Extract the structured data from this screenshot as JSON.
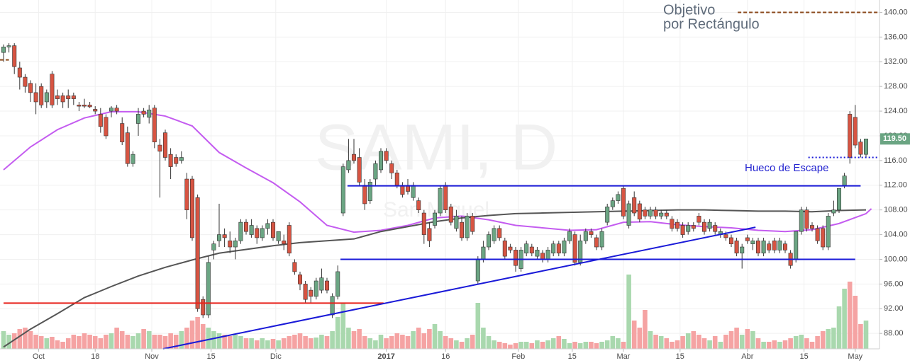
{
  "chart_data": {
    "type": "candlestick",
    "title": "SAMI, D",
    "subtitle": "San Miguel",
    "annotations": [
      "Objetivo",
      "por Rectángulo",
      "Hueco de Escape"
    ],
    "last_price": {
      "value": 119.5,
      "label": "119.50"
    },
    "xlim": [
      -0.66,
      162.5
    ],
    "ylim": [
      85.5,
      142
    ],
    "yticks": [
      {
        "value": 88,
        "label": "88.00"
      },
      {
        "value": 92,
        "label": "92.00"
      },
      {
        "value": 96,
        "label": "96.00"
      },
      {
        "value": 100,
        "label": "100.00"
      },
      {
        "value": 104,
        "label": "104.00"
      },
      {
        "value": 108,
        "label": "108.00"
      },
      {
        "value": 112,
        "label": "112.00"
      },
      {
        "value": 116,
        "label": "116.00"
      },
      {
        "value": 120,
        "label": "120.00"
      },
      {
        "value": 124,
        "label": "124.00"
      },
      {
        "value": 128,
        "label": "128.00"
      },
      {
        "value": 132,
        "label": "132.00"
      },
      {
        "value": 136,
        "label": "136.00"
      },
      {
        "value": 140,
        "label": "140.00"
      }
    ],
    "xticks": [
      {
        "value": 6.5,
        "label": "Oct"
      },
      {
        "value": 17,
        "label": "18"
      },
      {
        "value": 27.5,
        "label": "Nov"
      },
      {
        "value": 38.5,
        "label": "15"
      },
      {
        "value": 50.5,
        "label": "Dic"
      },
      {
        "value": 71,
        "label": "2017"
      },
      {
        "value": 82,
        "label": "16"
      },
      {
        "value": 95.5,
        "label": "Feb"
      },
      {
        "value": 105.5,
        "label": "15"
      },
      {
        "value": 115,
        "label": "Mar"
      },
      {
        "value": 125.5,
        "label": "15"
      },
      {
        "value": 138,
        "label": "Abr"
      },
      {
        "value": 148.5,
        "label": "15"
      },
      {
        "value": 158,
        "label": "May"
      }
    ],
    "grid": true,
    "up_color": "#6ba583",
    "down_color": "#d75442",
    "volume_up_color": "#a9d8ae",
    "volume_down_color": "#f5a3a3",
    "candles": [
      [
        133.5,
        134.8,
        132,
        134.4
      ],
      [
        134.4,
        135,
        133.5,
        134.6
      ],
      [
        134.6,
        135,
        130,
        131.2
      ],
      [
        131,
        132,
        127.5,
        129.5
      ],
      [
        129.5,
        130,
        127,
        128
      ],
      [
        128.5,
        129,
        125.5,
        127
      ],
      [
        127,
        128.5,
        123.5,
        125.5
      ],
      [
        128,
        128.5,
        124.5,
        125
      ],
      [
        125.5,
        127.5,
        124.5,
        127
      ],
      [
        130,
        130.5,
        124.5,
        125
      ],
      [
        126.5,
        127.5,
        125,
        126
      ],
      [
        126.5,
        127,
        124.5,
        125.5
      ],
      [
        126.5,
        127.5,
        124.5,
        126
      ],
      [
        126.5,
        127,
        125,
        126
      ],
      [
        125,
        125.5,
        124,
        124.8
      ],
      [
        125,
        126,
        124.5,
        124.8
      ],
      [
        125,
        125.5,
        124.5,
        124.7
      ],
      [
        124.3,
        124.8,
        123.5,
        124
      ],
      [
        123.5,
        124.5,
        120.5,
        121.5
      ],
      [
        123,
        123.5,
        119.5,
        120
      ],
      [
        124,
        124.8,
        123,
        124.5
      ],
      [
        124.5,
        125,
        123.5,
        124
      ],
      [
        122,
        123,
        118.5,
        119
      ],
      [
        120.5,
        121.5,
        115,
        115.5
      ],
      [
        115.5,
        117.5,
        115,
        117
      ],
      [
        122,
        124.5,
        120,
        123.5
      ],
      [
        124,
        124.5,
        123,
        123.5
      ],
      [
        123,
        125,
        122,
        124.2
      ],
      [
        124.5,
        125,
        118,
        119
      ],
      [
        118.5,
        119.5,
        110,
        117.5
      ],
      [
        120.5,
        121,
        116,
        116.5
      ],
      [
        117,
        118,
        113,
        115
      ],
      [
        116.5,
        117,
        115,
        115.5
      ],
      [
        116,
        117.5,
        115.5,
        116.5
      ],
      [
        113,
        114,
        106.5,
        108
      ],
      [
        113,
        113.5,
        103,
        103.5
      ],
      [
        110,
        110.5,
        91.5,
        92
      ],
      [
        93.5,
        94,
        90.5,
        91
      ],
      [
        91,
        100.5,
        90.5,
        99.5
      ],
      [
        101.5,
        103,
        100,
        102.5
      ],
      [
        103,
        109,
        102,
        104
      ],
      [
        104,
        105,
        102,
        103.5
      ],
      [
        103,
        104.5,
        101,
        102
      ],
      [
        102,
        103.5,
        100,
        103
      ],
      [
        103,
        106.5,
        102.5,
        106
      ],
      [
        106,
        106.5,
        104,
        104.5
      ],
      [
        104,
        106.5,
        103.5,
        105.5
      ],
      [
        105,
        105.5,
        102.5,
        103.5
      ],
      [
        103.5,
        105.5,
        103,
        105
      ],
      [
        105,
        106.5,
        104,
        105.8
      ],
      [
        106,
        106.5,
        103,
        103.5
      ],
      [
        103,
        104.5,
        102.5,
        104.5
      ],
      [
        103,
        104,
        101.5,
        102.5
      ],
      [
        105.5,
        106,
        100.5,
        101
      ],
      [
        99.5,
        100,
        97.5,
        98
      ],
      [
        97.5,
        98,
        95,
        96
      ],
      [
        96,
        96.5,
        93,
        93.5
      ],
      [
        95,
        95.5,
        93,
        94
      ],
      [
        94,
        97,
        93.5,
        96.5
      ],
      [
        95,
        98.5,
        94.5,
        97
      ],
      [
        96.5,
        97,
        94.5,
        95
      ],
      [
        91,
        94.5,
        90.5,
        94
      ],
      [
        94,
        99,
        93.5,
        98
      ],
      [
        107.5,
        115.5,
        107,
        115
      ],
      [
        114.5,
        119.5,
        114,
        116
      ],
      [
        117,
        119.5,
        115.5,
        116
      ],
      [
        116.5,
        118,
        112,
        112.5
      ],
      [
        112,
        113,
        108,
        109
      ],
      [
        109.5,
        113,
        109,
        112.5
      ],
      [
        113,
        116,
        112,
        115.5
      ],
      [
        114.5,
        118,
        114,
        117.5
      ],
      [
        117.5,
        118,
        115.5,
        116
      ],
      [
        115.5,
        116,
        113,
        114
      ],
      [
        114,
        114.5,
        111.5,
        112
      ],
      [
        112,
        112.5,
        110,
        110.5
      ],
      [
        112,
        113,
        110.5,
        111
      ],
      [
        110,
        112.5,
        109.5,
        112
      ],
      [
        109.5,
        110,
        107.5,
        108
      ],
      [
        107.5,
        108,
        102.5,
        104
      ],
      [
        105,
        106,
        102,
        103
      ],
      [
        105.5,
        108,
        105,
        107.5
      ],
      [
        107.5,
        112,
        107,
        111.5
      ],
      [
        112,
        112.5,
        107.5,
        108
      ],
      [
        108.5,
        109,
        105.5,
        106
      ],
      [
        105,
        108,
        104.5,
        107
      ],
      [
        106,
        107,
        103,
        103.5
      ],
      [
        103.5,
        107.5,
        103,
        107
      ],
      [
        107,
        107.5,
        104,
        104.5
      ],
      [
        96.5,
        100.5,
        96,
        100
      ],
      [
        100,
        103,
        99.5,
        102
      ],
      [
        102,
        104.5,
        101.5,
        104
      ],
      [
        103,
        105.5,
        102.5,
        105
      ],
      [
        105,
        105.5,
        103,
        103.5
      ],
      [
        103,
        103.5,
        100,
        100.5
      ],
      [
        102,
        102.5,
        101,
        101.5
      ],
      [
        101.5,
        102,
        98,
        99
      ],
      [
        98.5,
        102,
        98,
        101.5
      ],
      [
        101,
        103,
        100.5,
        102.5
      ],
      [
        102,
        102.5,
        100.5,
        101
      ],
      [
        100.5,
        102,
        100,
        101.5
      ],
      [
        101,
        101.5,
        99.5,
        100
      ],
      [
        100,
        102,
        99.5,
        101.5
      ],
      [
        101,
        103,
        100.5,
        102.5
      ],
      [
        102.5,
        103,
        100.5,
        101
      ],
      [
        101,
        103.5,
        100.5,
        103
      ],
      [
        103,
        105,
        102.5,
        104.5
      ],
      [
        104,
        104.5,
        99,
        99.5
      ],
      [
        99.5,
        104,
        99,
        103
      ],
      [
        103,
        105,
        102.5,
        104.5
      ],
      [
        104.5,
        105,
        103.5,
        104
      ],
      [
        103.5,
        104,
        101.5,
        102
      ],
      [
        102,
        105,
        101.5,
        104.5
      ],
      [
        106,
        109,
        105.5,
        108.5
      ],
      [
        108.5,
        110,
        108,
        109.5
      ],
      [
        109.5,
        111,
        109,
        110.5
      ],
      [
        111.5,
        112,
        106.5,
        107
      ],
      [
        105.5,
        109.5,
        105,
        109
      ],
      [
        110,
        111,
        107,
        107.5
      ],
      [
        109,
        109.5,
        106,
        106.5
      ],
      [
        108,
        108.5,
        106.5,
        107
      ],
      [
        107,
        108.5,
        106.5,
        108
      ],
      [
        108,
        108.5,
        106.5,
        107
      ],
      [
        107,
        108,
        106.5,
        107.5
      ],
      [
        107.5,
        108,
        106.5,
        107
      ],
      [
        106.5,
        107,
        104.5,
        105
      ],
      [
        106,
        106.5,
        104.5,
        105
      ],
      [
        105.5,
        106,
        103.5,
        104
      ],
      [
        104.5,
        106,
        104,
        105.5
      ],
      [
        105.5,
        106,
        104.5,
        105
      ],
      [
        107,
        107.5,
        105.5,
        106
      ],
      [
        106,
        106.5,
        104,
        104.5
      ],
      [
        105,
        106.5,
        104.5,
        106
      ],
      [
        105.5,
        106,
        104,
        104.5
      ],
      [
        104,
        105,
        103.5,
        104.5
      ],
      [
        104,
        104.5,
        103,
        103.5
      ],
      [
        103.5,
        104,
        102,
        102.5
      ],
      [
        103,
        103.5,
        100.5,
        101
      ],
      [
        101,
        102.5,
        98.5,
        102
      ],
      [
        103.5,
        104,
        102.5,
        103
      ],
      [
        102.5,
        103.5,
        101.5,
        103
      ],
      [
        103,
        103.5,
        100.5,
        101
      ],
      [
        101,
        103.5,
        100.5,
        103
      ],
      [
        102.5,
        103,
        101,
        101.5
      ],
      [
        103,
        103.5,
        101,
        101.5
      ],
      [
        101.5,
        103.5,
        101,
        103
      ],
      [
        102.5,
        103,
        101,
        101.5
      ],
      [
        101,
        101.5,
        98.5,
        99
      ],
      [
        100,
        104.5,
        99.5,
        104.5
      ],
      [
        104.5,
        108.5,
        104,
        108
      ],
      [
        108,
        108.5,
        104.5,
        105
      ],
      [
        105.5,
        106,
        104.5,
        105
      ],
      [
        105,
        105.5,
        102.5,
        103
      ],
      [
        105,
        105.5,
        101.5,
        102
      ],
      [
        102,
        107.5,
        101.5,
        107
      ],
      [
        107.5,
        109.5,
        107,
        108
      ],
      [
        108,
        111.5,
        107.5,
        111.5
      ],
      [
        112,
        114,
        111.5,
        113.5
      ],
      [
        123.5,
        124,
        115.5,
        116.5
      ],
      [
        123,
        125,
        118,
        118.5
      ],
      [
        119,
        119.5,
        116.5,
        117
      ],
      [
        117,
        119.5,
        116.5,
        119.5
      ]
    ],
    "volume_lim": [
      0,
      110
    ],
    "volume": [
      25,
      20,
      22,
      28,
      30,
      25,
      20,
      18,
      15,
      17,
      12,
      10,
      15,
      20,
      18,
      22,
      20,
      18,
      15,
      20,
      22,
      30,
      25,
      20,
      18,
      22,
      28,
      25,
      20,
      20,
      18,
      22,
      20,
      25,
      30,
      40,
      45,
      35,
      30,
      25,
      22,
      20,
      18,
      20,
      18,
      15,
      15,
      12,
      15,
      12,
      14,
      12,
      15,
      18,
      20,
      22,
      18,
      15,
      16,
      20,
      18,
      25,
      45,
      65,
      30,
      25,
      28,
      18,
      15,
      12,
      20,
      15,
      18,
      22,
      20,
      18,
      25,
      30,
      22,
      28,
      35,
      25,
      18,
      15,
      12,
      10,
      15,
      20,
      65,
      30,
      18,
      12,
      10,
      8,
      6,
      8,
      10,
      10,
      8,
      12,
      10,
      12,
      15,
      18,
      14,
      8,
      10,
      8,
      10,
      10,
      8,
      10,
      12,
      18,
      15,
      10,
      105,
      40,
      30,
      55,
      25,
      20,
      18,
      15,
      10,
      12,
      18,
      22,
      25,
      20,
      15,
      12,
      18,
      10,
      20,
      25,
      30,
      20,
      28,
      25,
      15,
      10,
      10,
      12,
      10,
      12,
      15,
      18,
      20,
      15,
      10,
      18,
      25,
      28,
      30,
      60,
      85,
      95,
      75,
      35,
      40
    ],
    "moving_averages": [
      {
        "color": "#c45cf0",
        "x": [
          0,
          5,
          10,
          15,
          20,
          25,
          30,
          35,
          40,
          45,
          50,
          55,
          60,
          65,
          70,
          75,
          80,
          85,
          90,
          95,
          100,
          105,
          110,
          115,
          120,
          125,
          130,
          135,
          140,
          145,
          150,
          155,
          160,
          161
        ],
        "values": [
          114.5,
          118.2,
          121,
          122.9,
          123.9,
          123.9,
          123.2,
          121.6,
          117.3,
          114.8,
          112.4,
          109.3,
          105.5,
          104.4,
          104.7,
          105.5,
          106.7,
          107,
          106.4,
          105.5,
          105.1,
          104.7,
          104.8,
          106,
          106.1,
          105.6,
          105.3,
          105.1,
          104.7,
          104.5,
          104.8,
          105.8,
          107.4,
          108.2
        ]
      },
      {
        "color": "#555555",
        "x": [
          0,
          5,
          10,
          15,
          20,
          25,
          30,
          35,
          40,
          45,
          50,
          55,
          60,
          65,
          70,
          75,
          80,
          85,
          90,
          95,
          100,
          105,
          110,
          115,
          120,
          125,
          130,
          135,
          140,
          145,
          150,
          155,
          160
        ],
        "values": [
          85.8,
          88.7,
          91.2,
          93.8,
          95.6,
          97.3,
          98.7,
          99.9,
          101,
          101.6,
          102.2,
          102.7,
          103,
          103.3,
          104.5,
          105.3,
          106.1,
          106.7,
          107.1,
          107.4,
          107.5,
          107.6,
          107.7,
          107.8,
          107.9,
          108,
          108,
          107.9,
          107.8,
          107.8,
          107.7,
          107.9,
          108
        ]
      }
    ],
    "drawings": [
      {
        "color": "#e8221b",
        "style": "solid",
        "x": [
          0,
          70.5
        ],
        "values": [
          92.9,
          92.9
        ]
      },
      {
        "color": "#1a1ad8",
        "style": "solid",
        "x": [
          63.8,
          159
        ],
        "values": [
          111.9,
          111.9
        ]
      },
      {
        "color": "#1a1ad8",
        "style": "solid",
        "x": [
          62.5,
          158
        ],
        "values": [
          100,
          100
        ]
      },
      {
        "color": "#1a1ad8",
        "style": "solid",
        "x": [
          29.6,
          139.5
        ],
        "values": [
          85.5,
          105.2
        ]
      },
      {
        "color": "#8b4a1c",
        "style": "dashed",
        "x": [
          136.2,
          162.5
        ],
        "values": [
          140,
          140
        ]
      },
      {
        "color": "#1a1ad8",
        "style": "dotted",
        "x": [
          149.3,
          162.5
        ],
        "values": [
          116.5,
          116.5
        ]
      },
      {
        "color": "#8b4a1c",
        "style": "dashed",
        "x": [
          -0.66,
          1
        ],
        "values": [
          132.3,
          132.3
        ]
      }
    ]
  }
}
